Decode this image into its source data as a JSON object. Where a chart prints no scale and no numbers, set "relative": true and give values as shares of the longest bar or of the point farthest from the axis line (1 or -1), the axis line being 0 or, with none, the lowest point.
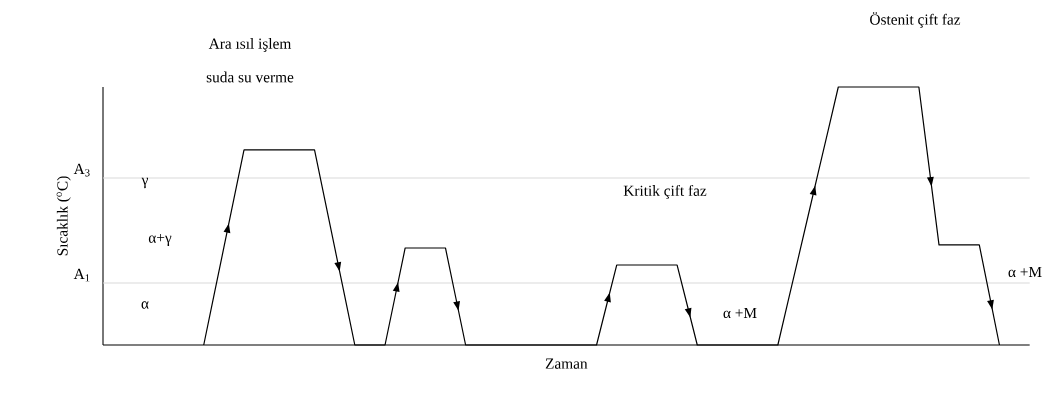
{
  "chart_data": {
    "type": "line",
    "relative": true,
    "xlabel": "Zaman",
    "ylabel": "Sıcaklık ($^{o}$C)",
    "tick_labels": false,
    "categories": [
      null,
      null,
      null,
      null,
      null,
      null,
      null,
      null,
      null,
      null,
      null,
      null,
      null,
      null,
      null,
      null,
      null,
      null,
      null,
      null,
      null,
      null,
      null,
      null,
      null,
      null,
      null,
      null,
      null,
      null,
      null,
      null,
      null,
      null,
      null,
      null,
      null,
      null,
      null,
      null,
      null,
      null,
      null,
      null,
      null,
      null,
      null,
      null,
      null,
      null,
      null,
      null,
      null,
      null,
      null,
      null,
      null,
      null,
      null,
      null,
      null,
      null,
      null,
      null,
      null,
      null,
      null,
      null,
      null,
      null,
      null,
      null,
      null,
      null,
      null,
      null,
      null,
      null,
      null,
      null,
      null,
      null,
      null,
      null,
      null,
      null,
      null,
      null,
      null,
      null,
      null,
      null,
      null
    ],
    "series": [
      {
        "color": "#000000",
        "values": [
          null,
          null,
          null,
          null,
          null,
          null,
          null,
          null,
          null,
          null,
          0,
          0.189,
          0.378,
          0.567,
          0.756,
          0.756,
          0.756,
          0.756,
          0.756,
          0.756,
          0.756,
          0.756,
          0.567,
          0.378,
          0.189,
          0,
          0,
          0,
          0,
          0.188,
          0.376,
          0.376,
          0.376,
          0.376,
          0.376,
          0.188,
          0,
          0,
          0,
          0,
          0,
          0,
          0,
          0,
          0,
          0,
          0,
          0,
          0,
          0,
          0.155,
          0.31,
          0.31,
          0.31,
          0.31,
          0.31,
          0.31,
          0.31,
          0.155,
          0,
          0,
          0,
          0,
          0,
          0,
          0,
          0,
          0,
          0.167,
          0.333,
          0.5,
          0.667,
          0.833,
          1,
          1,
          1,
          1,
          1,
          1,
          1,
          1,
          1,
          0.694,
          0.388,
          0.388,
          0.388,
          0.388,
          0.388,
          0.194,
          0,
          null,
          null,
          null
        ]
      }
    ],
    "ref_lines": [
      {
        "axis": "y",
        "value": 0.647,
        "label": "A$_{3}$",
        "color": "#d9d9d9"
      },
      {
        "axis": "y",
        "value": 0.24,
        "label": "A$_{1}$",
        "color": "#d9d9d9"
      }
    ],
    "annotations": [
      "Ara ısıl işlem",
      "suda su verme",
      "γ",
      "α+γ",
      "α",
      "Kritik çift faz",
      "α +M",
      "α +M",
      "Östenit çift faz"
    ]
  }
}
